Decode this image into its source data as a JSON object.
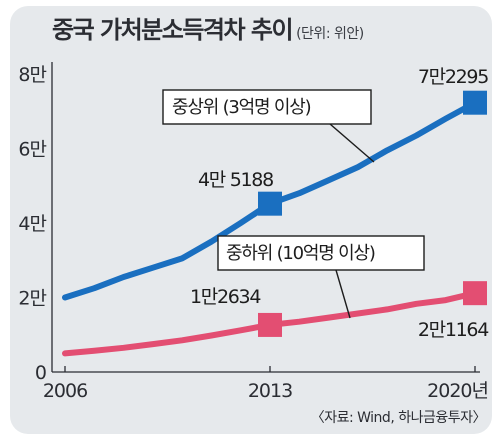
{
  "header": {
    "title": "중국 가처분소득격차 추이",
    "unit": "(단위: 위안)"
  },
  "source": "〈자료: Wind, 하나금융투자〉",
  "colors": {
    "upper": "#1a6fc0",
    "lower": "#e34e72",
    "background": "#e6e9ec",
    "axis": "#2b2d33"
  },
  "chart_data": {
    "type": "line",
    "title": "중국 가처분소득격차 추이",
    "subtitle": "(단위: 위안)",
    "x_ticks": [
      "2006",
      "2013",
      "2020년"
    ],
    "y_ticks": [
      "0",
      "2만",
      "4만",
      "6만",
      "8만"
    ],
    "y_tick_values": [
      0,
      20000,
      40000,
      60000,
      80000
    ],
    "ylim": [
      0,
      80000
    ],
    "xlim": [
      2006,
      2020
    ],
    "grid": false,
    "series": [
      {
        "name": "중상위 (3억명 이상)",
        "color": "#1a6fc0",
        "marker": "square",
        "x": [
          2006,
          2007,
          2008,
          2009,
          2010,
          2011,
          2012,
          2013,
          2014,
          2015,
          2016,
          2017,
          2018,
          2019,
          2020
        ],
        "y": [
          20000,
          22500,
          25500,
          28000,
          30500,
          35000,
          40000,
          45188,
          48000,
          51500,
          55000,
          59500,
          63500,
          68000,
          72295
        ],
        "labels": [
          {
            "x": 2013,
            "y": 45188,
            "text": "4만 5188"
          },
          {
            "x": 2020,
            "y": 72295,
            "text": "7만2295"
          }
        ]
      },
      {
        "name": "중하위 (10억명 이상)",
        "color": "#e34e72",
        "marker": "square",
        "x": [
          2006,
          2007,
          2008,
          2009,
          2010,
          2011,
          2012,
          2013,
          2014,
          2015,
          2016,
          2017,
          2018,
          2019,
          2020
        ],
        "y": [
          5000,
          5700,
          6500,
          7500,
          8500,
          9800,
          11200,
          12634,
          13500,
          14600,
          15700,
          16800,
          18300,
          19300,
          21164
        ],
        "labels": [
          {
            "x": 2013,
            "y": 12634,
            "text": "1만2634"
          },
          {
            "x": 2020,
            "y": 21164,
            "text": "2만1164"
          }
        ]
      }
    ]
  }
}
